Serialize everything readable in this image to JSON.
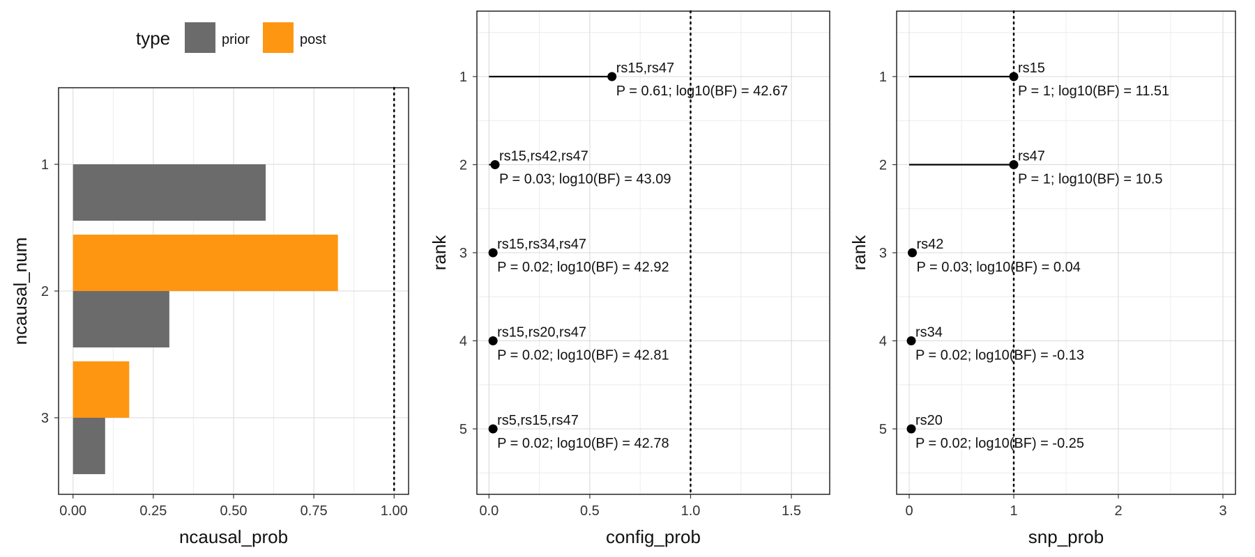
{
  "colors": {
    "prior": "#6b6b6b",
    "post": "#ff9612",
    "grid": "#d9d9d9",
    "gridMinor": "#ececec",
    "text": "#111111"
  },
  "legend": {
    "title": "type",
    "entries": [
      {
        "key": "prior",
        "label": "prior",
        "color": "#6b6b6b"
      },
      {
        "key": "post",
        "label": "post",
        "color": "#ff9612"
      }
    ]
  },
  "chart_data": [
    {
      "type": "bar",
      "orientation": "horizontal",
      "xlabel": "ncausal_prob",
      "ylabel": "ncausal_num",
      "xlim": [
        0,
        1
      ],
      "xticks": [
        "0.00",
        "0.25",
        "0.50",
        "0.75",
        "1.00"
      ],
      "reference_line": 1.0,
      "categories": [
        "1",
        "2",
        "3"
      ],
      "series": [
        {
          "name": "prior",
          "values": [
            0.6,
            0.3,
            0.1
          ]
        },
        {
          "name": "post",
          "values": [
            0.0,
            0.825,
            0.175
          ]
        }
      ]
    },
    {
      "type": "scatter",
      "xlabel": "config_prob",
      "ylabel": "rank",
      "xlim": [
        0,
        1.5
      ],
      "xticks": [
        "0.0",
        "0.5",
        "1.0",
        "1.5"
      ],
      "yticks": [
        "1",
        "2",
        "3",
        "4",
        "5"
      ],
      "reference_line": 1.0,
      "points": [
        {
          "rank": 1,
          "x": 0.61,
          "name": "rs15,rs47",
          "annotation": "P = 0.61; log10(BF) = 42.67"
        },
        {
          "rank": 2,
          "x": 0.03,
          "name": "rs15,rs42,rs47",
          "annotation": "P = 0.03; log10(BF) = 43.09"
        },
        {
          "rank": 3,
          "x": 0.02,
          "name": "rs15,rs34,rs47",
          "annotation": "P = 0.02; log10(BF) = 42.92"
        },
        {
          "rank": 4,
          "x": 0.02,
          "name": "rs15,rs20,rs47",
          "annotation": "P = 0.02; log10(BF) = 42.81"
        },
        {
          "rank": 5,
          "x": 0.02,
          "name": "rs5,rs15,rs47",
          "annotation": "P = 0.02; log10(BF) = 42.78"
        }
      ]
    },
    {
      "type": "scatter",
      "xlabel": "snp_prob",
      "ylabel": "rank",
      "xlim": [
        0,
        3
      ],
      "xticks": [
        "0",
        "1",
        "2",
        "3"
      ],
      "yticks": [
        "1",
        "2",
        "3",
        "4",
        "5"
      ],
      "reference_line": 1.0,
      "points": [
        {
          "rank": 1,
          "x": 1.0,
          "name": "rs15",
          "annotation": "P = 1; log10(BF) = 11.51"
        },
        {
          "rank": 2,
          "x": 1.0,
          "name": "rs47",
          "annotation": "P = 1; log10(BF) = 10.5"
        },
        {
          "rank": 3,
          "x": 0.03,
          "name": "rs42",
          "annotation": "P = 0.03; log10(BF) = 0.04"
        },
        {
          "rank": 4,
          "x": 0.02,
          "name": "rs34",
          "annotation": "P = 0.02; log10(BF) = -0.13"
        },
        {
          "rank": 5,
          "x": 0.02,
          "name": "rs20",
          "annotation": "P = 0.02; log10(BF) = -0.25"
        }
      ]
    }
  ]
}
